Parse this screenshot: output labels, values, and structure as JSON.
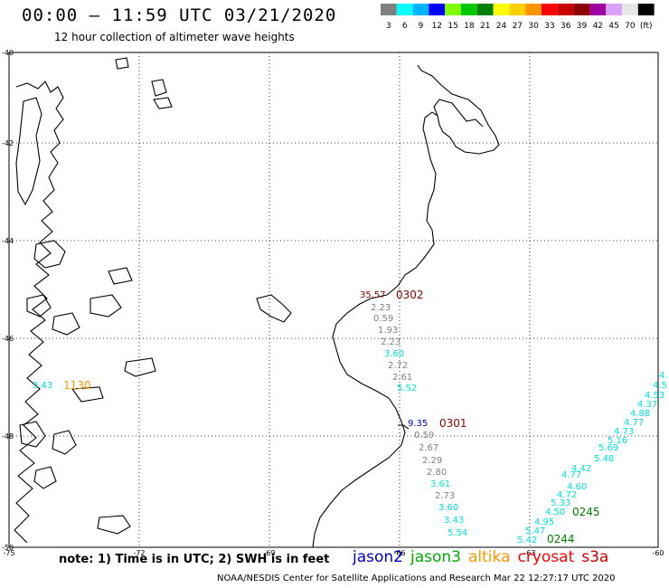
{
  "title": "00:00 – 11:59 UTC 03/21/2020",
  "subtitle": "12 hour collection of altimeter wave heights",
  "legend": {
    "ticks": [
      "3",
      "6",
      "9",
      "12",
      "15",
      "18",
      "21",
      "24",
      "27",
      "30",
      "33",
      "36",
      "39",
      "42",
      "45",
      "70",
      "(ft)"
    ],
    "colors": [
      "#808080",
      "#00ffff",
      "#00b4ff",
      "#0000ff",
      "#7fff00",
      "#00c800",
      "#008000",
      "#ffff00",
      "#ffd000",
      "#ff9600",
      "#ff0000",
      "#c80000",
      "#8b0000",
      "#a000a0",
      "#d8a0ff",
      "#e6e6e6",
      "#000000"
    ]
  },
  "axes": {
    "lat_labels": [
      "-40",
      "-42",
      "-44",
      "-46",
      "-48",
      "-50"
    ],
    "lon_labels": [
      "-75",
      "-72",
      "-69",
      "-66",
      "-63",
      "-60"
    ]
  },
  "note": "note:  1) Time is in UTC;  2) SWH is in feet",
  "satellites": [
    {
      "name": "jason2",
      "color": "#0000cc"
    },
    {
      "name": "jason3",
      "color": "#00aa00"
    },
    {
      "name": "altika",
      "color": "#ff9900"
    },
    {
      "name": "cryosat",
      "color": "#ff0000"
    },
    {
      "name": "s3a",
      "color": "#cc0000"
    }
  ],
  "footer": "NOAA/NESDIS Center for Satellite Applications and Research    Mar 22 12:27:17 UTC 2020",
  "passes": [
    {
      "time": "0302",
      "color": "#8b0000"
    },
    {
      "time": "1130",
      "color": "#ff9600"
    },
    {
      "time": "0301",
      "color": "#8b0000"
    },
    {
      "time": "0245",
      "color": "#008000"
    },
    {
      "time": "0244",
      "color": "#008000"
    }
  ],
  "track_values": {
    "t0302": [
      {
        "v": "35.57",
        "c": "#8b0000"
      },
      {
        "v": "2.23",
        "c": "#808080"
      },
      {
        "v": "0.59",
        "c": "#808080"
      },
      {
        "v": "1.93",
        "c": "#808080"
      },
      {
        "v": "2.23",
        "c": "#808080"
      },
      {
        "v": "3.60",
        "c": "#00e0e0"
      },
      {
        "v": "2.72",
        "c": "#808080"
      },
      {
        "v": "2.61",
        "c": "#808080"
      },
      {
        "v": "5.52",
        "c": "#00e0e0"
      }
    ],
    "t1130": [
      {
        "v": "3.43",
        "c": "#00e0e0"
      }
    ],
    "t0301": [
      {
        "v": "9.35",
        "c": "#0000cc"
      },
      {
        "v": "0.59",
        "c": "#808080"
      },
      {
        "v": "2.67",
        "c": "#808080"
      },
      {
        "v": "2.29",
        "c": "#808080"
      },
      {
        "v": "2.80",
        "c": "#808080"
      },
      {
        "v": "3.61",
        "c": "#00e0e0"
      },
      {
        "v": "2.73",
        "c": "#808080"
      },
      {
        "v": "3.60",
        "c": "#00e0e0"
      },
      {
        "v": "3.43",
        "c": "#00e0e0"
      },
      {
        "v": "5.54",
        "c": "#00e0e0"
      }
    ],
    "t0245": [
      {
        "v": "4.50",
        "c": "#00e0e0"
      },
      {
        "v": "5.33",
        "c": "#00e0e0"
      },
      {
        "v": "4.72",
        "c": "#00e0e0"
      },
      {
        "v": "4.77",
        "c": "#00e0e0"
      },
      {
        "v": "4.60",
        "c": "#00e0e0"
      },
      {
        "v": "4.42",
        "c": "#00e0e0"
      },
      {
        "v": "5.48",
        "c": "#00e0e0"
      },
      {
        "v": "5.69",
        "c": "#00e0e0"
      },
      {
        "v": "5.16",
        "c": "#00e0e0"
      },
      {
        "v": "4.73",
        "c": "#00e0e0"
      },
      {
        "v": "4.77",
        "c": "#00e0e0"
      },
      {
        "v": "4.88",
        "c": "#00e0e0"
      },
      {
        "v": "4.37",
        "c": "#00e0e0"
      },
      {
        "v": "4.53",
        "c": "#00e0e0"
      },
      {
        "v": "4.5",
        "c": "#00e0e0"
      },
      {
        "v": "4.",
        "c": "#00e0e0"
      }
    ],
    "t0244": [
      {
        "v": "5.42",
        "c": "#00e0e0"
      },
      {
        "v": "5.47",
        "c": "#00e0e0"
      },
      {
        "v": "4.95",
        "c": "#00e0e0"
      }
    ]
  }
}
